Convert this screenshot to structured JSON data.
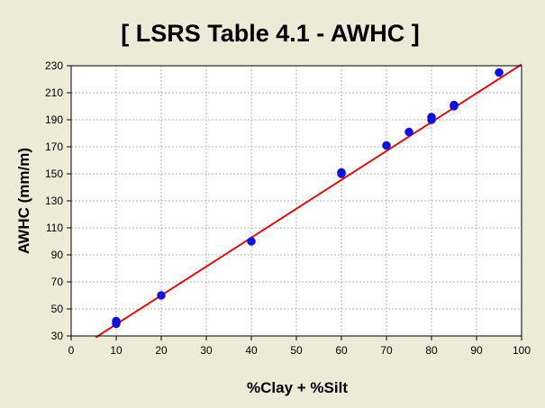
{
  "chart_data": {
    "type": "scatter",
    "title": "[ LSRS Table 4.1 - AWHC ]",
    "xlabel": "%Clay + %Silt",
    "ylabel": "AWHC (mm/m)",
    "xlim": [
      0,
      100
    ],
    "ylim": [
      30,
      230
    ],
    "xticks": [
      "0",
      "10",
      "20",
      "30",
      "40",
      "50",
      "60",
      "70",
      "80",
      "90",
      "100"
    ],
    "yticks": [
      "30",
      "50",
      "70",
      "90",
      "110",
      "130",
      "150",
      "170",
      "190",
      "210",
      "230"
    ],
    "grid": true,
    "legend": "none",
    "points": [
      {
        "x": 10,
        "y": 41
      },
      {
        "x": 10,
        "y": 39
      },
      {
        "x": 20,
        "y": 60
      },
      {
        "x": 40,
        "y": 100
      },
      {
        "x": 60,
        "y": 151
      },
      {
        "x": 60,
        "y": 150
      },
      {
        "x": 70,
        "y": 171
      },
      {
        "x": 75,
        "y": 181
      },
      {
        "x": 80,
        "y": 192
      },
      {
        "x": 80,
        "y": 190
      },
      {
        "x": 85,
        "y": 201
      },
      {
        "x": 85,
        "y": 200
      },
      {
        "x": 95,
        "y": 225
      }
    ],
    "fit_line": {
      "x": [
        5.5,
        100
      ],
      "y": [
        29,
        231
      ]
    },
    "colors": {
      "points": "#1010ee",
      "line": "#dd1111",
      "background": "#ebebd8",
      "plot_background": "#ffffff",
      "grid": "#b4b4b4"
    }
  }
}
